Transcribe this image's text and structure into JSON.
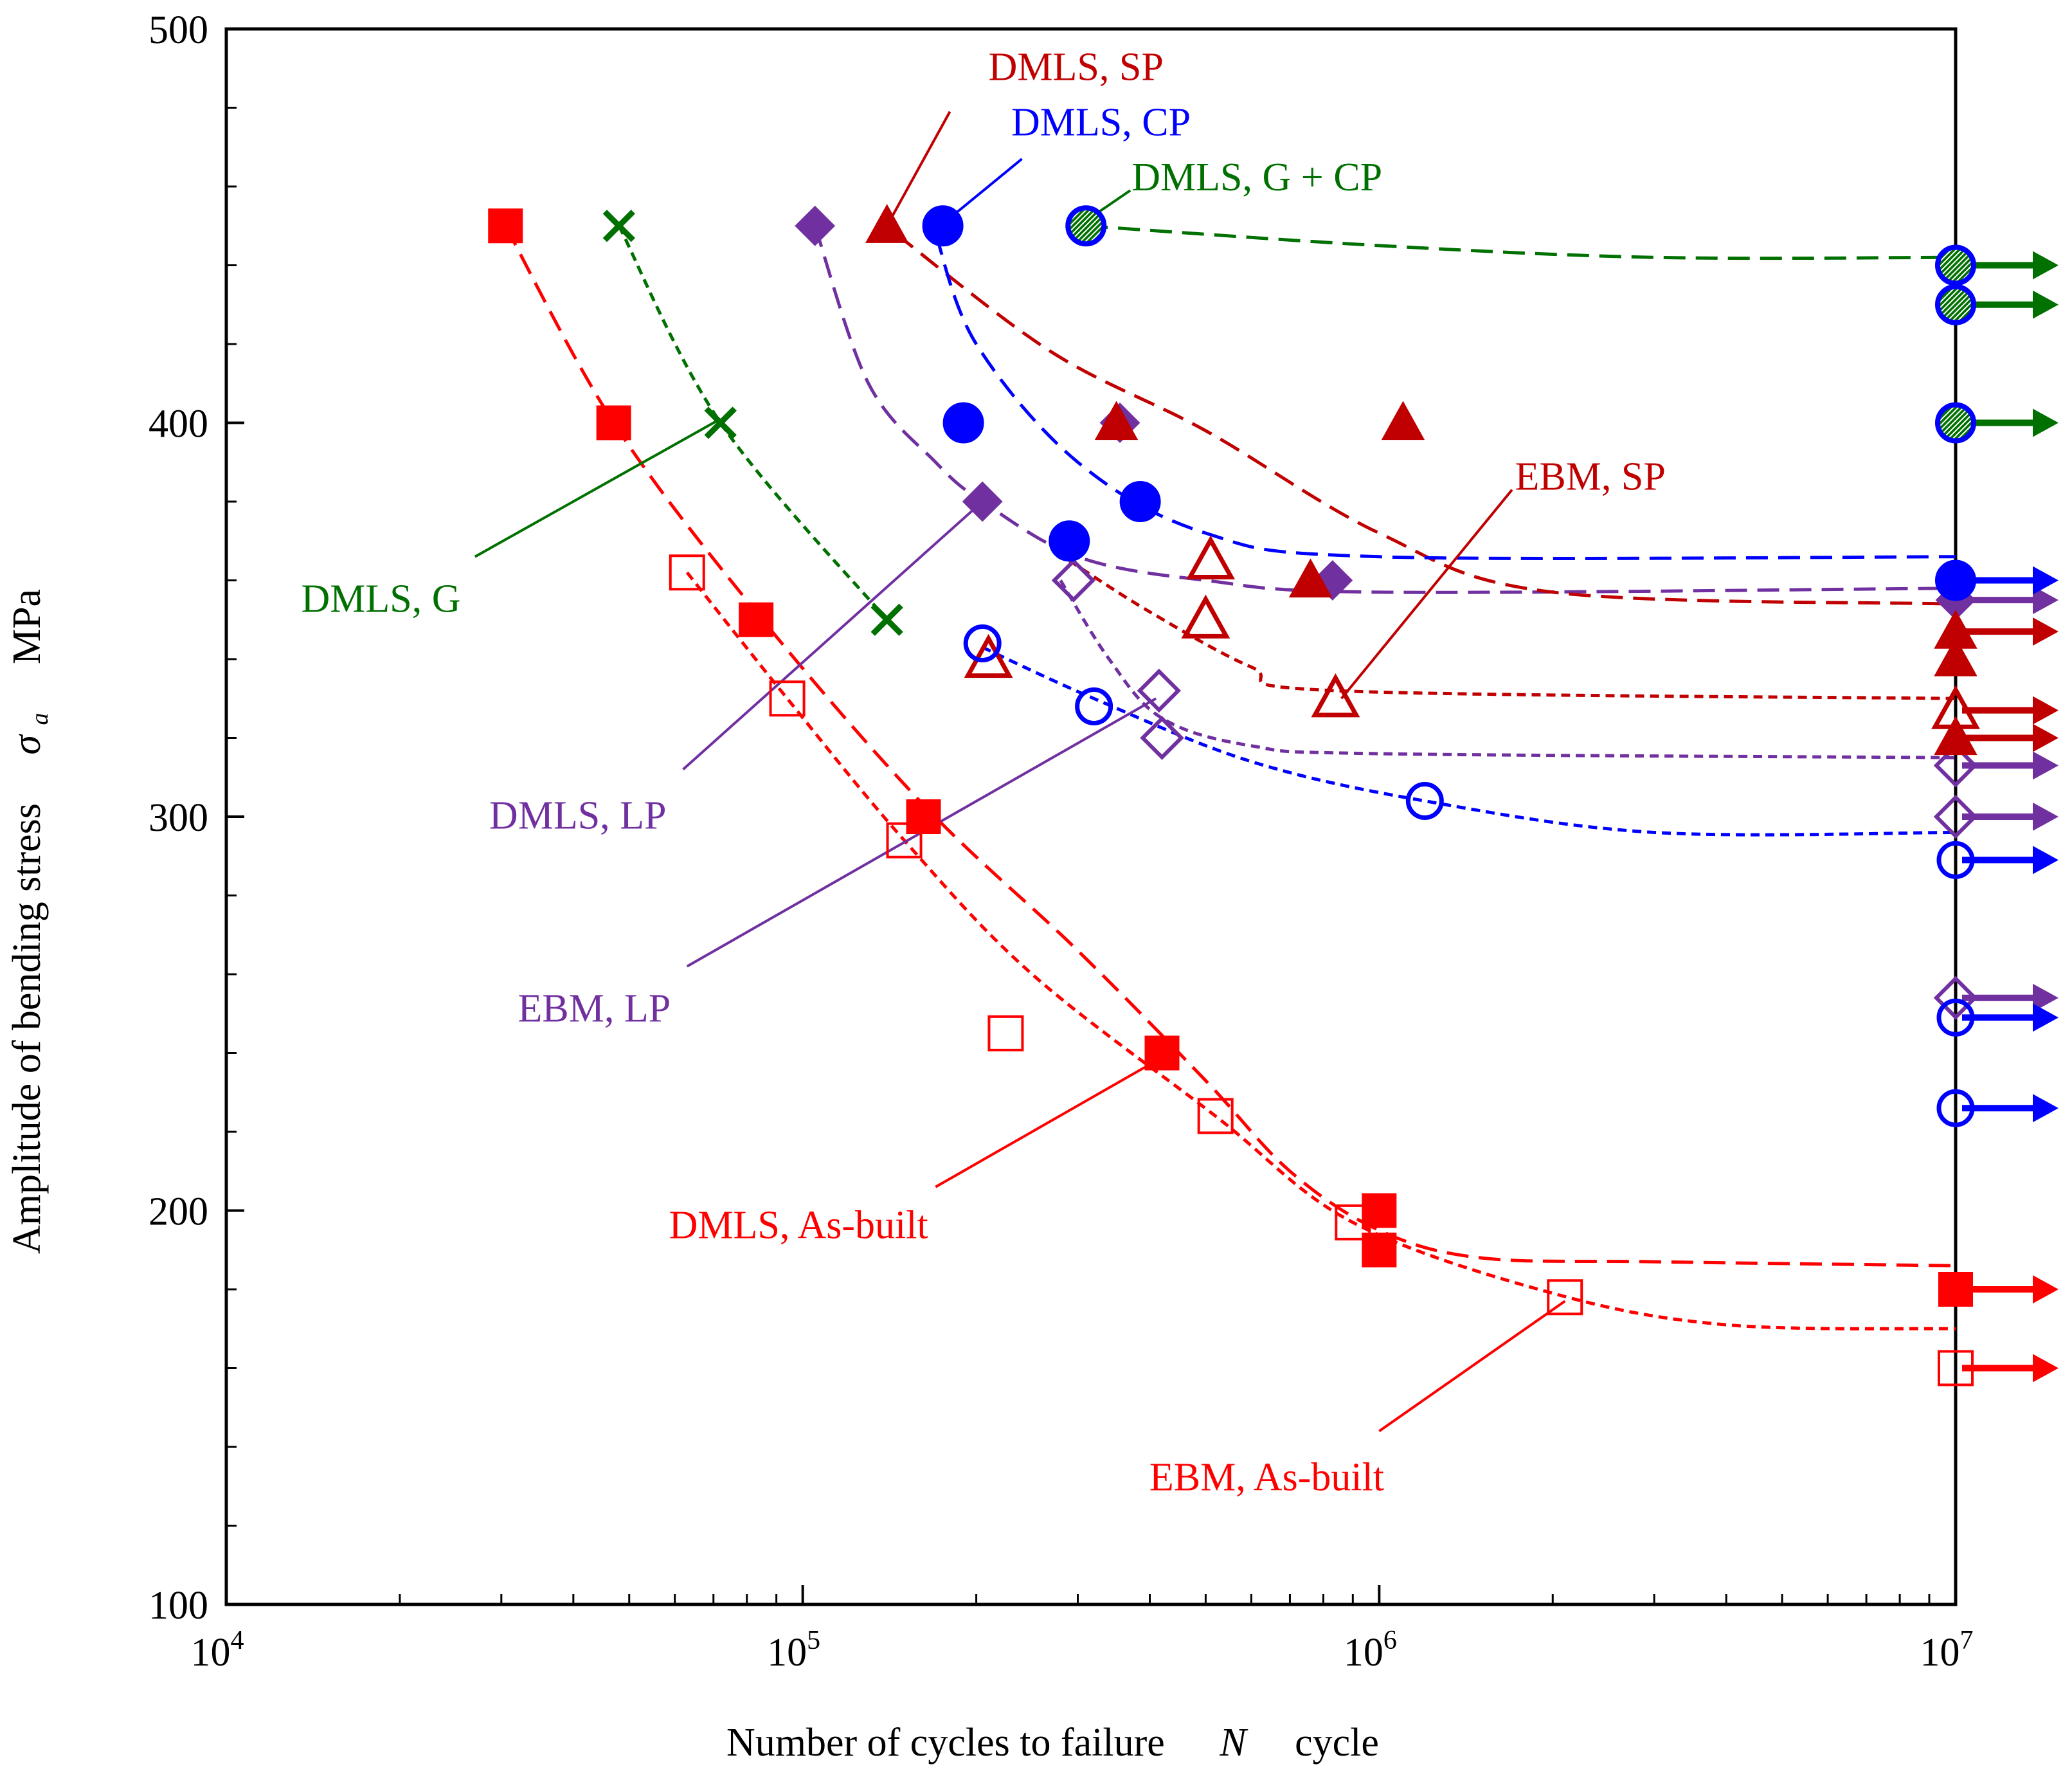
{
  "chart_data": {
    "type": "scatter",
    "title": "",
    "xlabel": "Number of cycles to failure",
    "xlabel_symbol": "N",
    "xlabel_unit": "cycle",
    "ylabel": "Amplitude of bending stress",
    "ylabel_symbol": "σ",
    "ylabel_symbol_sub": "a",
    "ylabel_unit": "MPa",
    "x_scale": "log",
    "xlim": [
      10000,
      10000000
    ],
    "ylim": [
      100,
      500
    ],
    "x_ticks": [
      {
        "value": 10000,
        "base": "10",
        "exp": "4"
      },
      {
        "value": 100000,
        "base": "10",
        "exp": "5"
      },
      {
        "value": 1000000,
        "base": "10",
        "exp": "6"
      },
      {
        "value": 10000000,
        "base": "10",
        "exp": "7"
      }
    ],
    "y_ticks": [
      100,
      200,
      300,
      400,
      500
    ],
    "y_minor_step": 20,
    "colors": {
      "red": "#ff0000",
      "darkred": "#c00000",
      "blue": "#0000ff",
      "purple": "#7030a0",
      "green": "#007000"
    },
    "series": [
      {
        "name": "DMLS, As-built",
        "color": "red",
        "marker": "square",
        "filled": true,
        "points": [
          [
            30500,
            450
          ],
          [
            47000,
            400
          ],
          [
            83000,
            350
          ],
          [
            162000,
            300
          ],
          [
            420000,
            240
          ],
          [
            1000000,
            200
          ],
          [
            1000000,
            190
          ],
          [
            10000000,
            180
          ]
        ],
        "runouts": [
          180
        ],
        "curve": {
          "dash": "long",
          "points": [
            [
              30500,
              450
            ],
            [
              47000,
              400
            ],
            [
              83000,
              352
            ],
            [
              162000,
              303
            ],
            [
              300000,
              266
            ],
            [
              500000,
              233
            ],
            [
              700000,
              210
            ],
            [
              1000000,
              195
            ],
            [
              1500000,
              188
            ],
            [
              3000000,
              187
            ],
            [
              10000000,
              186
            ]
          ]
        }
      },
      {
        "name": "EBM, As-built",
        "color": "red",
        "marker": "square",
        "filled": false,
        "points": [
          [
            63000,
            362
          ],
          [
            94000,
            330
          ],
          [
            150000,
            294
          ],
          [
            225000,
            245
          ],
          [
            520000,
            224
          ],
          [
            900000,
            197
          ],
          [
            2100000,
            178
          ],
          [
            10000000,
            160
          ]
        ],
        "runouts": [
          160
        ],
        "curve": {
          "dash": "short",
          "points": [
            [
              63000,
              362
            ],
            [
              94000,
              330
            ],
            [
              150000,
              294
            ],
            [
              250000,
              260
            ],
            [
              520000,
              224
            ],
            [
              900000,
              197
            ],
            [
              2000000,
              179
            ],
            [
              4000000,
              171
            ],
            [
              10000000,
              170
            ]
          ]
        }
      },
      {
        "name": "DMLS, G",
        "color": "green",
        "marker": "x",
        "filled": true,
        "points": [
          [
            48000,
            450
          ],
          [
            72000,
            400
          ],
          [
            140000,
            350
          ]
        ],
        "runouts": [],
        "curve": {
          "dash": "short",
          "points": [
            [
              48000,
              450
            ],
            [
              72000,
              400
            ],
            [
              140000,
              350
            ]
          ]
        }
      },
      {
        "name": "DMLS, LP",
        "color": "purple",
        "marker": "diamond",
        "filled": true,
        "points": [
          [
            105000,
            450
          ],
          [
            205000,
            380
          ],
          [
            355000,
            400
          ],
          [
            830000,
            360
          ],
          [
            10000000,
            355
          ]
        ],
        "runouts": [
          355
        ],
        "curve": {
          "dash": "long",
          "points": [
            [
              105000,
              450
            ],
            [
              130000,
              410
            ],
            [
              170000,
              390
            ],
            [
              205000,
              380
            ],
            [
              300000,
              366
            ],
            [
              500000,
              360
            ],
            [
              1000000,
              357
            ],
            [
              10000000,
              358
            ]
          ]
        }
      },
      {
        "name": "EBM, LP",
        "color": "purple",
        "marker": "diamond",
        "filled": false,
        "points": [
          [
            295000,
            360
          ],
          [
            415000,
            332
          ],
          [
            420000,
            320
          ],
          [
            10000000,
            313
          ],
          [
            10000000,
            300
          ],
          [
            10000000,
            254
          ]
        ],
        "runouts": [
          313,
          300,
          254
        ],
        "curve": {
          "dash": "short",
          "points": [
            [
              280000,
              360
            ],
            [
              340000,
              340
            ],
            [
              420000,
              325
            ],
            [
              600000,
              318
            ],
            [
              1000000,
              316
            ],
            [
              10000000,
              315
            ]
          ]
        }
      },
      {
        "name": "DMLS, SP",
        "color": "darkred",
        "marker": "triangle",
        "filled": true,
        "points": [
          [
            140000,
            450
          ],
          [
            350000,
            400
          ],
          [
            760000,
            360
          ],
          [
            1100000,
            400
          ],
          [
            10000000,
            347
          ],
          [
            10000000,
            340
          ],
          [
            10000000,
            320
          ]
        ],
        "runouts": [
          347,
          320
        ],
        "curve": {
          "dash": "long",
          "points": [
            [
              145000,
              448
            ],
            [
              270000,
              418
            ],
            [
              500000,
              398
            ],
            [
              1000000,
              372
            ],
            [
              2000000,
              357
            ],
            [
              10000000,
              354
            ]
          ]
        }
      },
      {
        "name": "EBM, SP",
        "color": "darkred",
        "marker": "triangle",
        "filled": false,
        "points": [
          [
            210000,
            340
          ],
          [
            510000,
            365
          ],
          [
            500000,
            350
          ],
          [
            840000,
            330
          ],
          [
            10000000,
            327
          ]
        ],
        "runouts": [
          327
        ],
        "curve": {
          "dash": "short",
          "points": [
            [
              290000,
              365
            ],
            [
              400000,
              352
            ],
            [
              600000,
              338
            ],
            [
              840000,
              332
            ],
            [
              10000000,
              330
            ]
          ]
        }
      },
      {
        "name": "DMLS, CP",
        "color": "blue",
        "marker": "circle",
        "filled": true,
        "points": [
          [
            175000,
            450
          ],
          [
            190000,
            400
          ],
          [
            385000,
            380
          ],
          [
            290000,
            370
          ],
          [
            10000000,
            360
          ]
        ],
        "runouts": [
          360
        ],
        "curve": {
          "dash": "long",
          "points": [
            [
              170000,
              448
            ],
            [
              200000,
              420
            ],
            [
              300000,
              390
            ],
            [
              500000,
              372
            ],
            [
              1000000,
              366
            ],
            [
              10000000,
              366
            ]
          ]
        }
      },
      {
        "name": "EBM, CP",
        "color": "blue",
        "marker": "circle",
        "filled": false,
        "points": [
          [
            205000,
            344
          ],
          [
            320000,
            328
          ],
          [
            1200000,
            304
          ],
          [
            10000000,
            289
          ],
          [
            10000000,
            249
          ],
          [
            10000000,
            226
          ]
        ],
        "runouts": [
          289,
          249,
          226
        ],
        "curve": {
          "dash": "short",
          "points": [
            [
              205000,
              343
            ],
            [
              320000,
              330
            ],
            [
              600000,
              314
            ],
            [
              1200000,
              304
            ],
            [
              3000000,
              296
            ],
            [
              10000000,
              296
            ]
          ]
        }
      },
      {
        "name": "DMLS, G + CP",
        "color": "green",
        "marker": "circle-hatched",
        "filled": true,
        "points": [
          [
            310000,
            450
          ],
          [
            10000000,
            440
          ],
          [
            10000000,
            430
          ],
          [
            10000000,
            400
          ]
        ],
        "runouts": [
          440,
          430,
          400
        ],
        "curve": {
          "dash": "long",
          "points": [
            [
              310000,
              450
            ],
            [
              1000000,
              445
            ],
            [
              3000000,
              442
            ],
            [
              10000000,
              442
            ]
          ]
        }
      }
    ],
    "annotations": [
      {
        "text": "DMLS, SP",
        "color": "darkred",
        "anchor": "start",
        "label_at": [
          210000,
          487
        ],
        "pointer_from": [
          180000,
          479
        ],
        "pointer_to": [
          140000,
          450
        ]
      },
      {
        "text": "DMLS, CP",
        "color": "blue",
        "anchor": "start",
        "label_at": [
          230000,
          473
        ],
        "pointer_from": [
          240000,
          467
        ],
        "pointer_to": [
          180000,
          452
        ]
      },
      {
        "text": "DMLS, G + CP",
        "color": "green",
        "anchor": "start",
        "label_at": [
          372000,
          459
        ],
        "pointer_from": [
          370000,
          459
        ],
        "pointer_to": [
          315000,
          452
        ]
      },
      {
        "text": "EBM, SP",
        "color": "darkred",
        "anchor": "start",
        "label_at": [
          1720000,
          383
        ],
        "pointer_from": [
          1700000,
          383
        ],
        "pointer_to": [
          860000,
          330
        ]
      },
      {
        "text": "DMLS, G",
        "color": "green",
        "anchor": "end",
        "label_at": [
          25500,
          352
        ],
        "pointer_from": [
          27000,
          366
        ],
        "pointer_to": [
          72000,
          401
        ]
      },
      {
        "text": "DMLS, LP",
        "color": "purple",
        "anchor": "end",
        "label_at": [
          58000,
          297
        ],
        "pointer_from": [
          62000,
          312
        ],
        "pointer_to": [
          205000,
          380
        ]
      },
      {
        "text": "EBM, LP",
        "color": "purple",
        "anchor": "end",
        "label_at": [
          59000,
          248
        ],
        "pointer_from": [
          63000,
          262
        ],
        "pointer_to": [
          410000,
          330
        ]
      },
      {
        "text": "DMLS, As-built",
        "color": "red",
        "anchor": "end",
        "label_at": [
          165000,
          193
        ],
        "pointer_from": [
          170000,
          206
        ],
        "pointer_to": [
          410000,
          238
        ]
      },
      {
        "text": "EBM, As-built",
        "color": "red",
        "anchor": "end",
        "label_at": [
          1020000,
          129
        ],
        "pointer_from": [
          1000000,
          144
        ],
        "pointer_to": [
          2100000,
          177
        ]
      }
    ]
  }
}
